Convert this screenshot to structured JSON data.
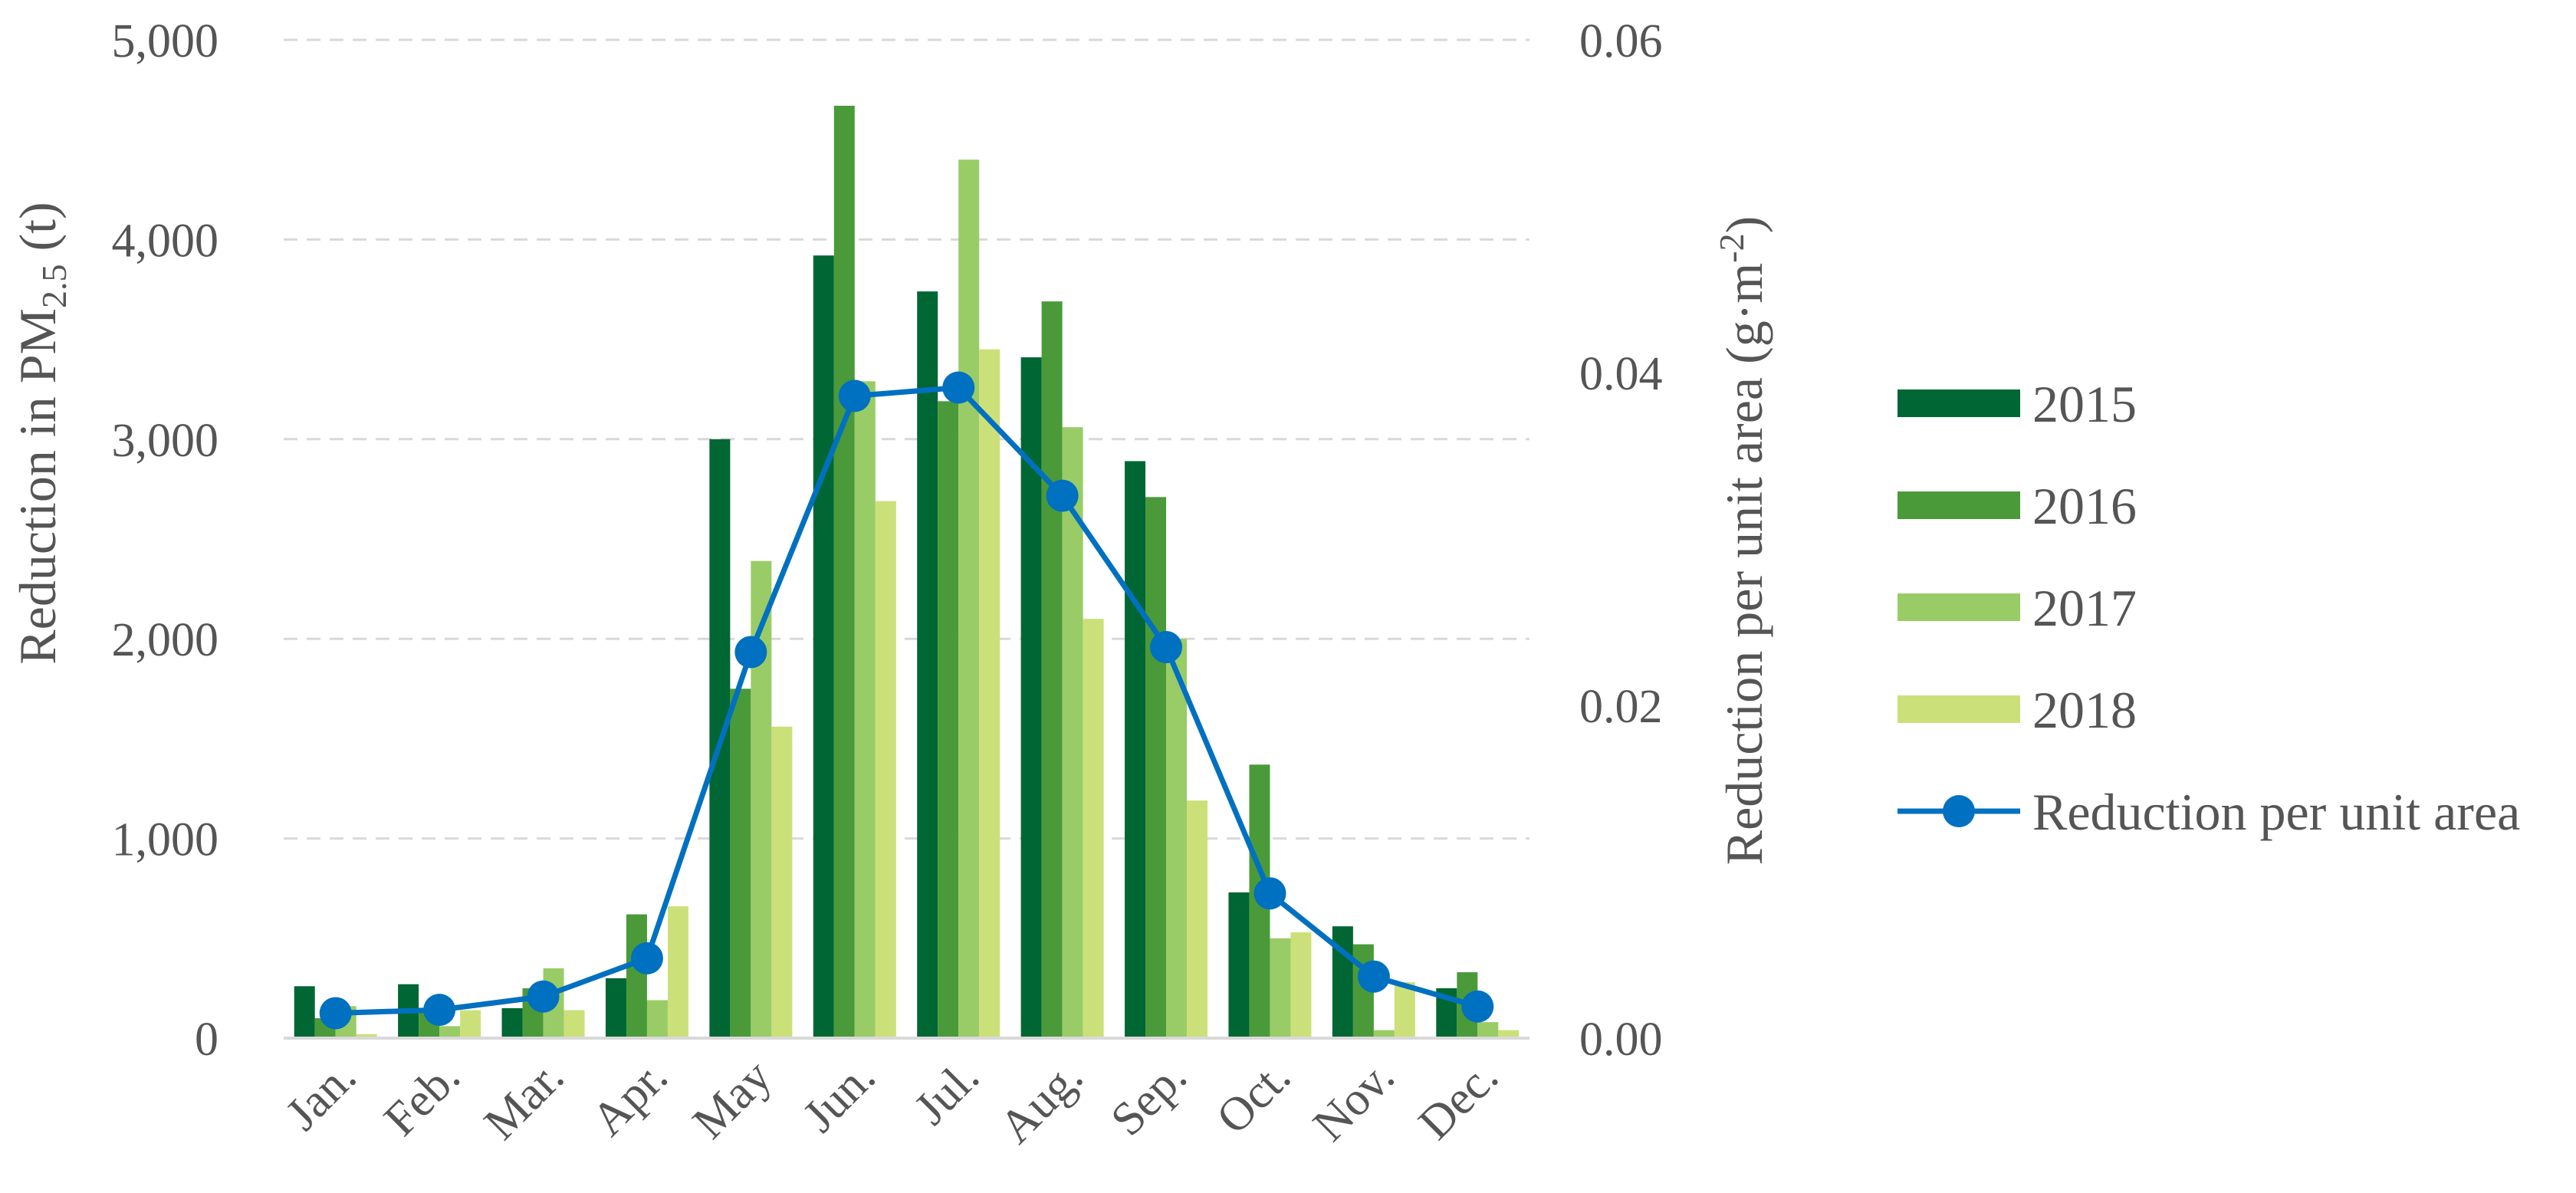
{
  "chart_data": {
    "type": "bar",
    "categories": [
      "Jan.",
      "Feb.",
      "Mar.",
      "Apr.",
      "May",
      "Jun.",
      "Jul.",
      "Aug.",
      "Sep.",
      "Oct.",
      "Nov.",
      "Dec."
    ],
    "series": [
      {
        "name": "2015",
        "color": "#006633",
        "values": [
          260,
          270,
          150,
          300,
          3000,
          3920,
          3740,
          3410,
          2890,
          730,
          560,
          250
        ]
      },
      {
        "name": "2016",
        "color": "#4a9a3a",
        "values": [
          100,
          150,
          250,
          620,
          1750,
          4670,
          3190,
          3690,
          2710,
          1370,
          470,
          330
        ]
      },
      {
        "name": "2017",
        "color": "#99cc66",
        "values": [
          160,
          60,
          350,
          190,
          2390,
          3290,
          4400,
          3060,
          2000,
          500,
          40,
          80
        ]
      },
      {
        "name": "2018",
        "color": "#cce07a",
        "values": [
          20,
          140,
          140,
          660,
          1560,
          2690,
          3450,
          2100,
          1190,
          530,
          280,
          40
        ]
      }
    ],
    "line_series": {
      "name": "Reduction per unit area",
      "color": "#0070c0",
      "values": [
        0.0015,
        0.0017,
        0.0025,
        0.0048,
        0.0232,
        0.0386,
        0.0391,
        0.0326,
        0.0235,
        0.0087,
        0.0037,
        0.0019
      ]
    },
    "y_left": {
      "ticks": [
        "0",
        "1,000",
        "2,000",
        "3,000",
        "4,000",
        "5,000"
      ],
      "ylim": [
        0,
        5000
      ]
    },
    "y_right": {
      "ticks": [
        "0.00",
        "0.02",
        "0.04",
        "0.06"
      ],
      "ylim": [
        0,
        0.06
      ]
    },
    "ylabel_left": {
      "text": "Reduction in PM",
      "sub": "2.5",
      "suffix": " (t)"
    },
    "ylabel_right": {
      "text": "Reduction per unit area (g·m",
      "sup": "-2",
      "suffix": ")"
    },
    "legend": [
      "2015",
      "2016",
      "2017",
      "2018",
      "Reduction per unit area"
    ],
    "legend_position": "right",
    "grid": true
  }
}
